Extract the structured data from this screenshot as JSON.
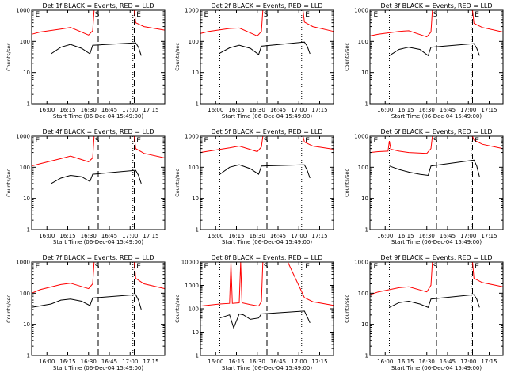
{
  "figure": {
    "background": "#ffffff",
    "colors": {
      "events": "#000000",
      "lld": "#ff0000",
      "axes": "#000000"
    }
  },
  "chart_data": [
    {
      "type": "line",
      "title": "Det 1f BLACK = Events, RED = LLD",
      "xlabel": "Start Time (06-Dec-04 15:49:00)",
      "ylabel": "Counts/sec",
      "yscale": "log",
      "ylim": [
        1,
        1000
      ],
      "ytick_labels": [
        "1",
        "10",
        "100",
        "1000"
      ],
      "xtick_labels": [
        "16:00",
        "16:15",
        "16:30",
        "16:45",
        "17:00",
        "17:15"
      ],
      "xlim_minutes_after_1549": [
        0,
        96
      ],
      "markers": [
        {
          "label": "E",
          "at": "15:51"
        },
        {
          "label": "S",
          "at": "16:34"
        },
        {
          "label": "E",
          "at": "17:04"
        }
      ],
      "dotted_lines": [
        "16:03",
        "17:02"
      ],
      "dashed_lines": [
        "16:37",
        "17:03"
      ],
      "series": [
        {
          "name": "Events",
          "color": "#000000",
          "x": [
            "16:03",
            "16:10",
            "16:17",
            "16:25",
            "16:31",
            "16:33",
            "17:04",
            "17:06",
            "17:08"
          ],
          "y": [
            40,
            65,
            80,
            60,
            40,
            75,
            90,
            65,
            35
          ]
        },
        {
          "name": "LLD",
          "color": "#ff0000",
          "x": [
            "15:49",
            "15:55",
            "16:10",
            "16:17",
            "16:30",
            "16:33",
            "16:34",
            "17:03",
            "17:04",
            "17:10",
            "17:25"
          ],
          "y": [
            170,
            200,
            250,
            280,
            160,
            220,
            1000,
            1000,
            400,
            300,
            230
          ]
        }
      ]
    },
    {
      "type": "line",
      "title": "Det 2f BLACK = Events, RED = LLD",
      "xlabel": "Start Time (06-Dec-04 15:49:00)",
      "ylabel": "Counts/sec",
      "yscale": "log",
      "ylim": [
        1,
        1000
      ],
      "ytick_labels": [
        "1",
        "10",
        "100",
        "1000"
      ],
      "xtick_labels": [
        "16:00",
        "16:15",
        "16:30",
        "16:45",
        "17:00",
        "17:15"
      ],
      "xlim_minutes_after_1549": [
        0,
        96
      ],
      "markers": [
        {
          "label": "E",
          "at": "15:51"
        },
        {
          "label": "S",
          "at": "16:34"
        },
        {
          "label": "E",
          "at": "17:04"
        }
      ],
      "dotted_lines": [
        "16:03",
        "17:02"
      ],
      "dashed_lines": [
        "16:37",
        "17:03"
      ],
      "series": [
        {
          "name": "Events",
          "color": "#000000",
          "x": [
            "16:03",
            "16:10",
            "16:17",
            "16:25",
            "16:31",
            "16:33",
            "17:04",
            "17:06",
            "17:08"
          ],
          "y": [
            42,
            62,
            75,
            60,
            38,
            70,
            95,
            70,
            40
          ]
        },
        {
          "name": "LLD",
          "color": "#ff0000",
          "x": [
            "15:49",
            "15:55",
            "16:10",
            "16:17",
            "16:30",
            "16:33",
            "16:34",
            "17:03",
            "17:04",
            "17:10",
            "17:25"
          ],
          "y": [
            180,
            210,
            260,
            270,
            150,
            210,
            1000,
            1000,
            420,
            300,
            210
          ]
        }
      ]
    },
    {
      "type": "line",
      "title": "Det 3f BLACK = Events, RED = LLD",
      "xlabel": "Start Time (06-Dec-04 15:49:00)",
      "ylabel": "Counts/sec",
      "yscale": "log",
      "ylim": [
        1,
        1000
      ],
      "ytick_labels": [
        "1",
        "10",
        "100",
        "1000"
      ],
      "xtick_labels": [
        "16:00",
        "16:15",
        "16:30",
        "16:45",
        "17:00",
        "17:15"
      ],
      "xlim_minutes_after_1549": [
        0,
        96
      ],
      "markers": [
        {
          "label": "E",
          "at": "15:51"
        },
        {
          "label": "S",
          "at": "16:34"
        },
        {
          "label": "E",
          "at": "17:04"
        }
      ],
      "dotted_lines": [
        "16:03",
        "17:02"
      ],
      "dashed_lines": [
        "16:37",
        "17:03"
      ],
      "series": [
        {
          "name": "Events",
          "color": "#000000",
          "x": [
            "16:03",
            "16:10",
            "16:17",
            "16:25",
            "16:31",
            "16:33",
            "17:04",
            "17:06",
            "17:08"
          ],
          "y": [
            35,
            55,
            65,
            55,
            35,
            65,
            85,
            60,
            35
          ]
        },
        {
          "name": "LLD",
          "color": "#ff0000",
          "x": [
            "15:49",
            "15:55",
            "16:10",
            "16:17",
            "16:30",
            "16:33",
            "16:34",
            "17:03",
            "17:04",
            "17:10",
            "17:25"
          ],
          "y": [
            150,
            170,
            210,
            220,
            140,
            200,
            1000,
            1000,
            380,
            280,
            200
          ]
        }
      ]
    },
    {
      "type": "line",
      "title": "Det 4f BLACK = Events, RED = LLD",
      "xlabel": "Start Time (06-Dec-04 15:49:00)",
      "ylabel": "Counts/sec",
      "yscale": "log",
      "ylim": [
        1,
        1000
      ],
      "ytick_labels": [
        "1",
        "10",
        "100",
        "1000"
      ],
      "xtick_labels": [
        "16:00",
        "16:15",
        "16:30",
        "16:45",
        "17:00",
        "17:15"
      ],
      "xlim_minutes_after_1549": [
        0,
        96
      ],
      "markers": [
        {
          "label": "E",
          "at": "15:51"
        },
        {
          "label": "S",
          "at": "16:34"
        },
        {
          "label": "E",
          "at": "17:04"
        }
      ],
      "dotted_lines": [
        "16:03",
        "17:02"
      ],
      "dashed_lines": [
        "16:37",
        "17:03"
      ],
      "series": [
        {
          "name": "Events",
          "color": "#000000",
          "x": [
            "16:03",
            "16:10",
            "16:17",
            "16:25",
            "16:31",
            "16:33",
            "17:04",
            "17:06",
            "17:08"
          ],
          "y": [
            30,
            45,
            55,
            50,
            35,
            60,
            80,
            55,
            30
          ]
        },
        {
          "name": "LLD",
          "color": "#ff0000",
          "x": [
            "15:49",
            "15:55",
            "16:10",
            "16:17",
            "16:30",
            "16:33",
            "16:34",
            "17:03",
            "17:04",
            "17:10",
            "17:25"
          ],
          "y": [
            110,
            130,
            190,
            230,
            150,
            200,
            1000,
            1000,
            400,
            280,
            200
          ]
        }
      ]
    },
    {
      "type": "line",
      "title": "Det 5f BLACK = Events, RED = LLD",
      "xlabel": "Start Time (06-Dec-04 15:49:00)",
      "ylabel": "Counts/sec",
      "yscale": "log",
      "ylim": [
        1,
        1000
      ],
      "ytick_labels": [
        "1",
        "10",
        "100",
        "1000"
      ],
      "xtick_labels": [
        "16:00",
        "16:15",
        "16:30",
        "16:45",
        "17:00",
        "17:15"
      ],
      "xlim_minutes_after_1549": [
        0,
        96
      ],
      "markers": [
        {
          "label": "E",
          "at": "15:51"
        },
        {
          "label": "S",
          "at": "16:34"
        },
        {
          "label": "E",
          "at": "17:04"
        }
      ],
      "dotted_lines": [
        "16:03",
        "17:02"
      ],
      "dashed_lines": [
        "16:37",
        "17:03"
      ],
      "series": [
        {
          "name": "Events",
          "color": "#000000",
          "x": [
            "16:03",
            "16:10",
            "16:17",
            "16:25",
            "16:31",
            "16:33",
            "17:04",
            "17:06",
            "17:08"
          ],
          "y": [
            60,
            100,
            120,
            90,
            60,
            110,
            120,
            80,
            45
          ]
        },
        {
          "name": "LLD",
          "color": "#ff0000",
          "x": [
            "15:49",
            "15:55",
            "16:10",
            "16:17",
            "16:30",
            "16:33",
            "16:34",
            "17:03",
            "17:04",
            "17:10",
            "17:25"
          ],
          "y": [
            300,
            330,
            420,
            480,
            320,
            450,
            1000,
            1000,
            650,
            480,
            380
          ]
        }
      ]
    },
    {
      "type": "line",
      "title": "Det 6f BLACK = Events, RED = LLD",
      "xlabel": "Start Time (06-Dec-04 15:49:00)",
      "ylabel": "Counts/sec",
      "yscale": "log",
      "ylim": [
        1,
        1000
      ],
      "ytick_labels": [
        "1",
        "10",
        "100",
        "1000"
      ],
      "xtick_labels": [
        "16:00",
        "16:15",
        "16:30",
        "16:45",
        "17:00",
        "17:15"
      ],
      "xlim_minutes_after_1549": [
        0,
        96
      ],
      "markers": [
        {
          "label": "E",
          "at": "15:51"
        },
        {
          "label": "S",
          "at": "16:34"
        },
        {
          "label": "E",
          "at": "17:04"
        }
      ],
      "dotted_lines": [
        "16:03",
        "17:02"
      ],
      "dashed_lines": [
        "16:37",
        "17:03"
      ],
      "series": [
        {
          "name": "Events",
          "color": "#000000",
          "x": [
            "16:03",
            "16:10",
            "16:17",
            "16:25",
            "16:31",
            "16:33",
            "17:04",
            "17:06",
            "17:08"
          ],
          "y": [
            110,
            85,
            70,
            60,
            55,
            110,
            170,
            110,
            50
          ]
        },
        {
          "name": "LLD",
          "color": "#ff0000",
          "x": [
            "15:49",
            "15:55",
            "16:02",
            "16:03",
            "16:04",
            "16:10",
            "16:17",
            "16:30",
            "16:33",
            "16:34",
            "17:03",
            "17:04",
            "17:10",
            "17:25"
          ],
          "y": [
            300,
            320,
            330,
            700,
            380,
            330,
            300,
            280,
            400,
            1000,
            1000,
            750,
            550,
            400
          ]
        }
      ]
    },
    {
      "type": "line",
      "title": "Det 7f BLACK = Events, RED = LLD",
      "xlabel": "Start Time (06-Dec-04 15:49:00)",
      "ylabel": "Counts/sec",
      "yscale": "log",
      "ylim": [
        1,
        1000
      ],
      "ytick_labels": [
        "1",
        "10",
        "100",
        "1000"
      ],
      "xtick_labels": [
        "16:00",
        "16:15",
        "16:30",
        "16:45",
        "17:00",
        "17:15"
      ],
      "xlim_minutes_after_1549": [
        0,
        96
      ],
      "markers": [
        {
          "label": "E",
          "at": "15:51"
        },
        {
          "label": "S",
          "at": "16:34"
        },
        {
          "label": "E",
          "at": "17:04"
        }
      ],
      "dotted_lines": [
        "16:03",
        "17:02"
      ],
      "dashed_lines": [
        "16:37",
        "17:03"
      ],
      "series": [
        {
          "name": "Events",
          "color": "#000000",
          "x": [
            "15:49",
            "16:03",
            "16:10",
            "16:17",
            "16:25",
            "16:31",
            "16:33",
            "17:04",
            "17:06",
            "17:08"
          ],
          "y": [
            35,
            45,
            60,
            65,
            55,
            40,
            70,
            90,
            60,
            30
          ]
        },
        {
          "name": "LLD",
          "color": "#ff0000",
          "x": [
            "15:49",
            "15:55",
            "16:10",
            "16:17",
            "16:30",
            "16:33",
            "16:34",
            "17:03",
            "17:04",
            "17:10",
            "17:25"
          ],
          "y": [
            100,
            130,
            190,
            210,
            140,
            200,
            1000,
            1000,
            300,
            200,
            140
          ]
        }
      ]
    },
    {
      "type": "line",
      "title": "Det 8f BLACK = Events, RED = LLD",
      "xlabel": "Start Time (06-Dec-04 15:49:00)",
      "ylabel": "Counts/sec",
      "yscale": "log",
      "ylim": [
        1,
        10000
      ],
      "ytick_labels": [
        "1",
        "10",
        "100",
        "1000",
        "10000"
      ],
      "xtick_labels": [
        "16:00",
        "16:15",
        "16:30",
        "16:45",
        "17:00",
        "17:15"
      ],
      "xlim_minutes_after_1549": [
        0,
        96
      ],
      "markers": [
        {
          "label": "E",
          "at": "15:51"
        },
        {
          "label": "S",
          "at": "16:34"
        },
        {
          "label": "E",
          "at": "17:04"
        }
      ],
      "dotted_lines": [
        "16:03",
        "17:02"
      ],
      "dashed_lines": [
        "16:37",
        "17:03"
      ],
      "series": [
        {
          "name": "Events",
          "color": "#000000",
          "x": [
            "16:03",
            "16:10",
            "16:13",
            "16:17",
            "16:20",
            "16:25",
            "16:31",
            "16:33",
            "17:04",
            "17:06",
            "17:08"
          ],
          "y": [
            40,
            55,
            15,
            60,
            55,
            35,
            40,
            60,
            80,
            45,
            25
          ]
        },
        {
          "name": "LLD",
          "color": "#ff0000",
          "x": [
            "15:49",
            "16:03",
            "16:10",
            "16:11",
            "16:12",
            "16:17",
            "16:18",
            "16:19",
            "16:25",
            "16:31",
            "16:33",
            "16:34",
            "16:52",
            "17:04",
            "17:10",
            "17:25"
          ],
          "y": [
            130,
            160,
            170,
            10000,
            170,
            180,
            10000,
            180,
            150,
            130,
            200,
            10000,
            10000,
            300,
            200,
            140
          ]
        }
      ]
    },
    {
      "type": "line",
      "title": "Det 9f BLACK = Events, RED = LLD",
      "xlabel": "Start Time (06-Dec-04 15:49:00)",
      "ylabel": "Counts/sec",
      "yscale": "log",
      "ylim": [
        1,
        1000
      ],
      "ytick_labels": [
        "1",
        "10",
        "100",
        "1000"
      ],
      "xtick_labels": [
        "16:00",
        "16:15",
        "16:30",
        "16:45",
        "17:00",
        "17:15"
      ],
      "xlim_minutes_after_1549": [
        0,
        96
      ],
      "markers": [
        {
          "label": "E",
          "at": "15:51"
        },
        {
          "label": "S",
          "at": "16:34"
        },
        {
          "label": "E",
          "at": "17:04"
        }
      ],
      "dotted_lines": [
        "16:03",
        "17:02"
      ],
      "dashed_lines": [
        "16:37",
        "17:03"
      ],
      "series": [
        {
          "name": "Events",
          "color": "#000000",
          "x": [
            "16:03",
            "16:10",
            "16:17",
            "16:25",
            "16:31",
            "16:33",
            "17:04",
            "17:06",
            "17:08"
          ],
          "y": [
            35,
            50,
            55,
            45,
            35,
            65,
            90,
            65,
            35
          ]
        },
        {
          "name": "LLD",
          "color": "#ff0000",
          "x": [
            "15:49",
            "15:55",
            "16:10",
            "16:17",
            "16:30",
            "16:33",
            "16:34",
            "17:03",
            "17:04",
            "17:10",
            "17:25"
          ],
          "y": [
            90,
            110,
            150,
            160,
            110,
            180,
            1000,
            1000,
            300,
            220,
            160
          ]
        }
      ]
    }
  ]
}
